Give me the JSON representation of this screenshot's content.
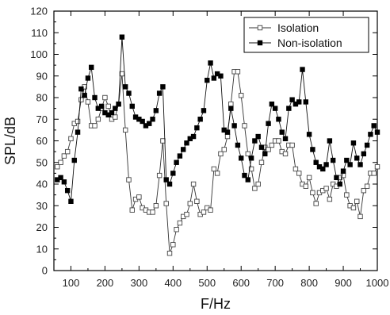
{
  "chart_data": {
    "type": "line",
    "xlabel": "F/Hz",
    "ylabel": "SPL/dB",
    "xlim": [
      50,
      1000
    ],
    "ylim": [
      0,
      120
    ],
    "xticks": [
      100,
      200,
      300,
      400,
      500,
      600,
      700,
      800,
      900,
      1000
    ],
    "yticks": [
      0,
      10,
      20,
      30,
      40,
      50,
      60,
      70,
      80,
      90,
      100,
      110,
      120
    ],
    "grid": false,
    "legend_position": "top-right",
    "series": [
      {
        "name": "Isolation",
        "marker": "open-square",
        "color": "#333333",
        "x": [
          60,
          70,
          80,
          90,
          100,
          110,
          120,
          130,
          140,
          150,
          160,
          170,
          180,
          190,
          200,
          210,
          220,
          230,
          240,
          250,
          260,
          270,
          280,
          290,
          300,
          310,
          320,
          330,
          340,
          350,
          360,
          370,
          380,
          390,
          400,
          410,
          420,
          430,
          440,
          450,
          460,
          470,
          480,
          490,
          500,
          510,
          520,
          530,
          540,
          550,
          560,
          570,
          580,
          590,
          600,
          610,
          620,
          630,
          640,
          650,
          660,
          670,
          680,
          690,
          700,
          710,
          720,
          730,
          740,
          750,
          760,
          770,
          780,
          790,
          800,
          810,
          820,
          830,
          840,
          850,
          860,
          870,
          880,
          890,
          900,
          910,
          920,
          930,
          940,
          950,
          960,
          970,
          980,
          990,
          1000
        ],
        "y": [
          48,
          50,
          53,
          55,
          61,
          68,
          69,
          79,
          85,
          78,
          67,
          67,
          70,
          75,
          80,
          76,
          70,
          71,
          77,
          91,
          65,
          42,
          28,
          33,
          34,
          29,
          28,
          27,
          27,
          30,
          44,
          60,
          31,
          8,
          12,
          19,
          22,
          25,
          26,
          31,
          40,
          32,
          26,
          27,
          29,
          28,
          47,
          45,
          54,
          56,
          62,
          77,
          92,
          92,
          81,
          67,
          54,
          47,
          38,
          40,
          50,
          57,
          56,
          58,
          60,
          60,
          55,
          54,
          58,
          58,
          47,
          45,
          40,
          39,
          43,
          36,
          31,
          36,
          37,
          38,
          33,
          40,
          39,
          43,
          44,
          35,
          30,
          29,
          32,
          25,
          37,
          39,
          45,
          45,
          48
        ]
      },
      {
        "name": "Non-isolation",
        "marker": "filled-square",
        "color": "#111111",
        "x": [
          60,
          70,
          80,
          90,
          100,
          110,
          120,
          130,
          140,
          150,
          160,
          170,
          180,
          190,
          200,
          210,
          220,
          230,
          240,
          250,
          260,
          270,
          280,
          290,
          300,
          310,
          320,
          330,
          340,
          350,
          360,
          370,
          380,
          390,
          400,
          410,
          420,
          430,
          440,
          450,
          460,
          470,
          480,
          490,
          500,
          510,
          520,
          530,
          540,
          550,
          560,
          570,
          580,
          590,
          600,
          610,
          620,
          630,
          640,
          650,
          660,
          670,
          680,
          690,
          700,
          710,
          720,
          730,
          740,
          750,
          760,
          770,
          780,
          790,
          800,
          810,
          820,
          830,
          840,
          850,
          860,
          870,
          880,
          890,
          900,
          910,
          920,
          930,
          940,
          950,
          960,
          970,
          980,
          990,
          1000
        ],
        "y": [
          42,
          43,
          41,
          37,
          32,
          51,
          64,
          84,
          81,
          89,
          94,
          80,
          75,
          76,
          73,
          72,
          73,
          75,
          77,
          108,
          85,
          82,
          76,
          71,
          70,
          69,
          67,
          68,
          70,
          74,
          82,
          85,
          42,
          40,
          45,
          50,
          53,
          56,
          59,
          61,
          62,
          66,
          70,
          74,
          88,
          96,
          89,
          91,
          90,
          65,
          64,
          75,
          67,
          58,
          52,
          44,
          42,
          52,
          60,
          62,
          57,
          54,
          68,
          77,
          75,
          70,
          64,
          61,
          75,
          79,
          77,
          78,
          93,
          78,
          63,
          56,
          50,
          48,
          47,
          49,
          60,
          51,
          43,
          40,
          46,
          51,
          49,
          59,
          52,
          49,
          54,
          58,
          63,
          67,
          64
        ]
      }
    ],
    "legend": [
      "Isolation",
      "Non-isolation"
    ]
  }
}
